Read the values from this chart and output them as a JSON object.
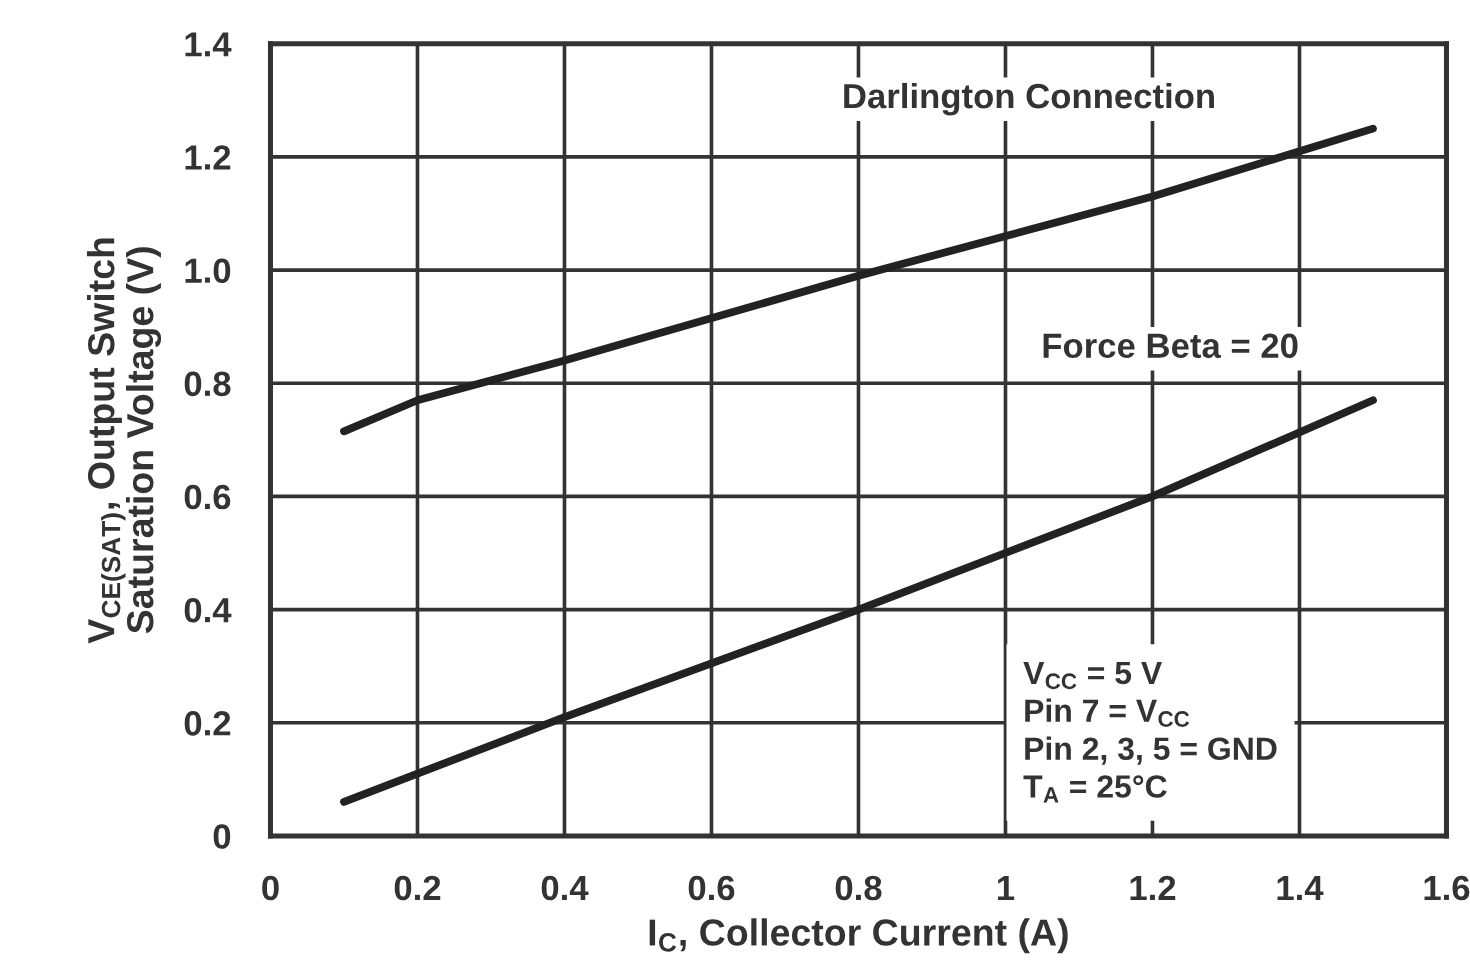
{
  "chart_data": {
    "type": "line",
    "xlabel": "I$_{C}$, Collector Current (A)",
    "ylabel": "V$_{CE(SAT)}$, Output Switch\nSaturation Voltage (V)",
    "series": [
      {
        "color": "#222222",
        "x": [
          0.1,
          0.2,
          0.4,
          0.8,
          1.2,
          1.5
        ],
        "values": [
          0.715,
          0.77,
          0.84,
          0.99,
          1.13,
          1.25
        ]
      },
      {
        "color": "#222222",
        "x": [
          0.1,
          0.4,
          0.8,
          1.2,
          1.5
        ],
        "values": [
          0.06,
          0.21,
          0.4,
          0.6,
          0.77
        ]
      }
    ],
    "annotations": [
      "Darlington Connection",
      "Force Beta = 20",
      "V$_{CC}$ = 5 V\nPin 7 = V$_{CC}$\nPin 2, 3, 5 = GND\nT$_{A}$ = 25°C"
    ],
    "xlim": [
      0,
      1.6
    ],
    "xticks": [
      0,
      0.2,
      0.4,
      0.6,
      0.8,
      1,
      1.2,
      1.4,
      1.6
    ],
    "ylim": [
      0,
      1.4
    ],
    "yticks": [
      0,
      0.2,
      0.4,
      0.6,
      0.8,
      {
        "value": 1,
        "label": "1.0"
      },
      1.2,
      1.4
    ],
    "grid": true,
    "marker": "none",
    "line_style": "solid",
    "legend": false
  }
}
